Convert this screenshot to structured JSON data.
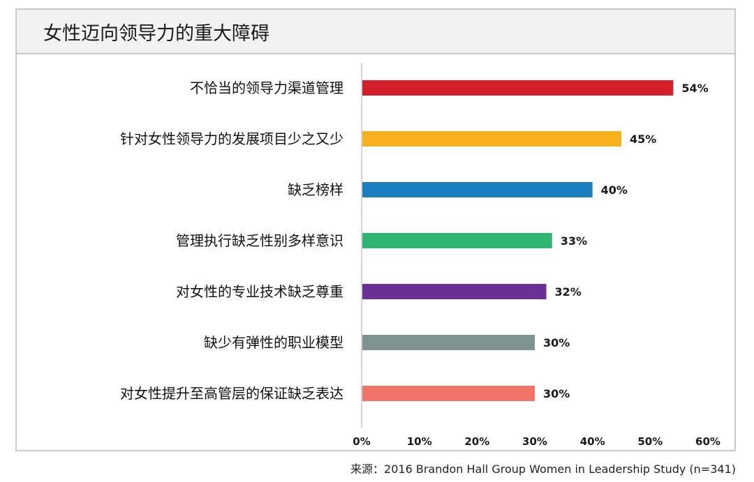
{
  "header": {
    "title": "女性迈向领导力的重大障碍"
  },
  "footer": {
    "source_label": "来源：",
    "source_text": "2016 Brandon Hall Group Women in Leadership Study (n=341)"
  },
  "chart_data": {
    "type": "bar",
    "orientation": "horizontal",
    "title": "女性迈向领导力的重大障碍",
    "categories": [
      "不恰当的领导力渠道管理",
      "针对女性领导力的发展项目少之又少",
      "缺乏榜样",
      "管理执行缺乏性别多样意识",
      "对女性的专业技术缺乏尊重",
      "缺少有弹性的职业模型",
      "对女性提升至高管层的保证缺乏表达"
    ],
    "values": [
      54,
      45,
      40,
      33,
      32,
      30,
      30
    ],
    "value_labels": [
      "54%",
      "45%",
      "40%",
      "33%",
      "32%",
      "30%",
      "30%"
    ],
    "colors": [
      "#d41f2a",
      "#f6b01c",
      "#1a7fc0",
      "#2db572",
      "#6a3096",
      "#7f9393",
      "#f07468"
    ],
    "xlim": [
      0,
      60
    ],
    "xticks": [
      0,
      10,
      20,
      30,
      40,
      50,
      60
    ],
    "xtick_labels": [
      "0%",
      "10%",
      "20%",
      "30%",
      "40%",
      "50%",
      "60%"
    ],
    "grid": false,
    "legend": "none"
  }
}
